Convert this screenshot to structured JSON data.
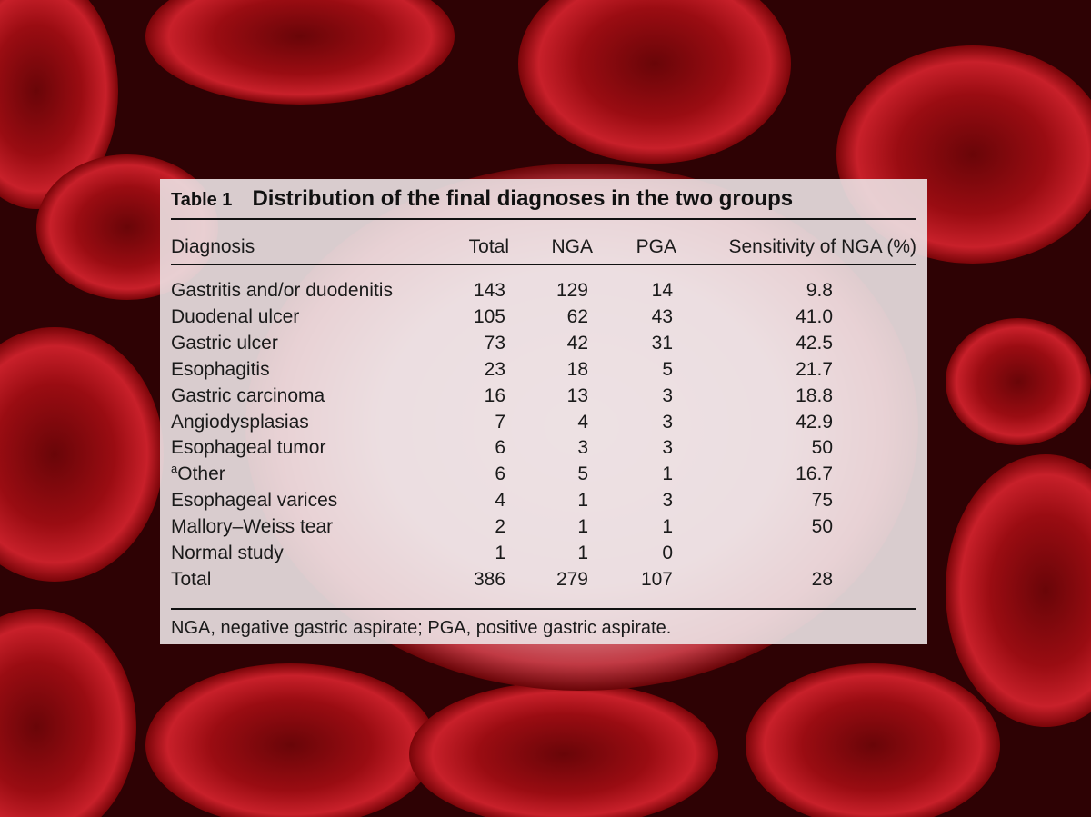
{
  "table": {
    "label": "Table 1",
    "title": "Distribution of the final diagnoses in the two groups",
    "headers": [
      "Diagnosis",
      "Total",
      "NGA",
      "PGA",
      "Sensitivity of NGA (%)"
    ],
    "rows": [
      {
        "diagnosis": "Gastritis and/or duodenitis",
        "total": "143",
        "nga": "129",
        "pga": "14",
        "sensitivity": "9.8"
      },
      {
        "diagnosis": "Duodenal ulcer",
        "total": "105",
        "nga": "62",
        "pga": "43",
        "sensitivity": "41.0"
      },
      {
        "diagnosis": "Gastric ulcer",
        "total": "73",
        "nga": "42",
        "pga": "31",
        "sensitivity": "42.5"
      },
      {
        "diagnosis": "Esophagitis",
        "total": "23",
        "nga": "18",
        "pga": "5",
        "sensitivity": "21.7"
      },
      {
        "diagnosis": "Gastric carcinoma",
        "total": "16",
        "nga": "13",
        "pga": "3",
        "sensitivity": "18.8"
      },
      {
        "diagnosis": "Angiodysplasias",
        "total": "7",
        "nga": "4",
        "pga": "3",
        "sensitivity": "42.9"
      },
      {
        "diagnosis": "Esophageal tumor",
        "total": "6",
        "nga": "3",
        "pga": "3",
        "sensitivity": "50"
      },
      {
        "diagnosis": "Other",
        "footnote_mark": "a",
        "total": "6",
        "nga": "5",
        "pga": "1",
        "sensitivity": "16.7"
      },
      {
        "diagnosis": "Esophageal varices",
        "total": "4",
        "nga": "1",
        "pga": "3",
        "sensitivity": "75"
      },
      {
        "diagnosis": "Mallory–Weiss tear",
        "total": "2",
        "nga": "1",
        "pga": "1",
        "sensitivity": "50"
      },
      {
        "diagnosis": "Normal study",
        "total": "1",
        "nga": "1",
        "pga": "0",
        "sensitivity": ""
      },
      {
        "diagnosis": "Total",
        "total": "386",
        "nga": "279",
        "pga": "107",
        "sensitivity": "28"
      }
    ],
    "footnote": "NGA, negative gastric aspirate; PGA, positive gastric aspirate."
  },
  "colors": {
    "background": "#3a0306",
    "cell_red": "#b01218",
    "card": "#ece2e4",
    "text": "#1a1a1a"
  }
}
